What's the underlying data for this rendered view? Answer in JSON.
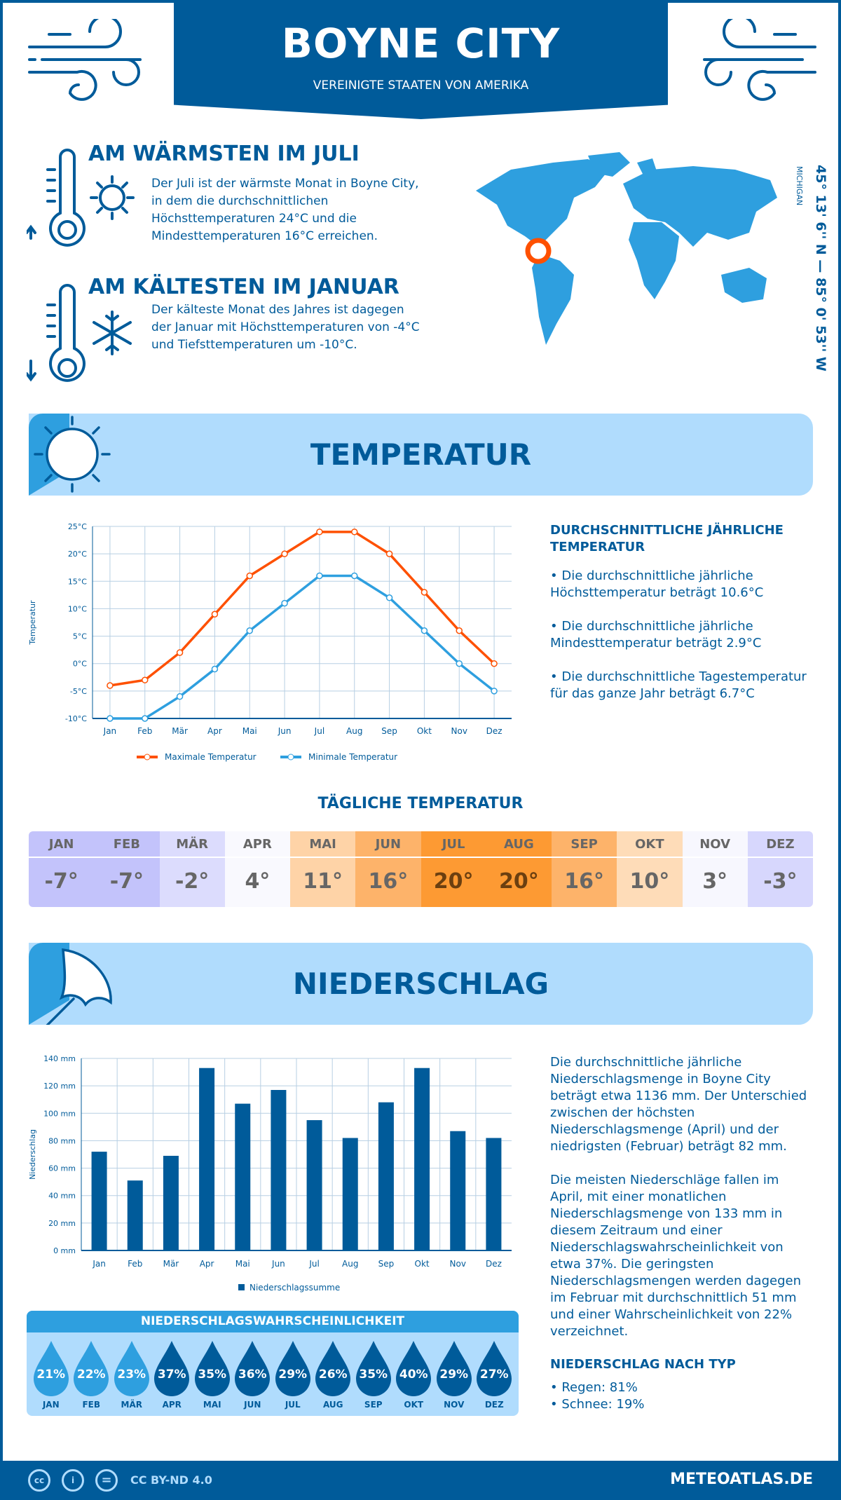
{
  "header": {
    "title": "BOYNE CITY",
    "subtitle": "VEREINIGTE STAATEN VON AMERIKA"
  },
  "warmest": {
    "heading": "AM WÄRMSTEN IM JULI",
    "lines": [
      "Der Juli ist der wärmste Monat in Boyne City,",
      "in dem die durchschnittlichen",
      "Höchsttemperaturen 24°C und die",
      "Mindesttemperaturen 16°C erreichen."
    ]
  },
  "coldest": {
    "heading": "AM KÄLTESTEN IM JANUAR",
    "lines": [
      "Der kälteste Monat des Jahres ist dagegen",
      "der Januar mit Höchsttemperaturen von -4°C",
      "und Tiefsttemperaturen um -10°C."
    ]
  },
  "location": {
    "coords": "45° 13' 6'' N — 85° 0' 53'' W",
    "region": "MICHIGAN"
  },
  "temp_section": {
    "title": "TEMPERATUR",
    "side_heading": "DURCHSCHNITTLICHE JÄHRLICHE TEMPERATUR",
    "side_lines": [
      [
        "• Die durchschnittliche jährliche",
        "Höchsttemperatur beträgt 10.6°C"
      ],
      [
        "• Die durchschnittliche jährliche",
        "Mindesttemperatur beträgt 2.9°C"
      ],
      [
        "• Die durchschnittliche Tagestemperatur",
        "für das ganze Jahr beträgt 6.7°C"
      ]
    ]
  },
  "chart_data": [
    {
      "type": "line",
      "ylabel": "Temperatur",
      "categories": [
        "Jan",
        "Feb",
        "Mär",
        "Apr",
        "Mai",
        "Jun",
        "Jul",
        "Aug",
        "Sep",
        "Okt",
        "Nov",
        "Dez"
      ],
      "ylim": [
        -10,
        25
      ],
      "yticks": [
        "-10°C",
        "-5°C",
        "0°C",
        "5°C",
        "10°C",
        "15°C",
        "20°C",
        "25°C"
      ],
      "grid": true,
      "legend": "bottom",
      "series": [
        {
          "name": "Maximale Temperatur",
          "color": "#fe5000",
          "values": [
            -4,
            -3,
            2,
            9,
            16,
            20,
            24,
            24,
            20,
            13,
            6,
            0
          ]
        },
        {
          "name": "Minimale Temperatur",
          "color": "#2e9fdf",
          "values": [
            -10,
            -10,
            -6,
            -1,
            6,
            11,
            16,
            16,
            12,
            6,
            0,
            -5
          ]
        }
      ]
    },
    {
      "type": "bar",
      "ylabel": "Niederschlag",
      "categories": [
        "Jan",
        "Feb",
        "Mär",
        "Apr",
        "Mai",
        "Jun",
        "Jul",
        "Aug",
        "Sep",
        "Okt",
        "Nov",
        "Dez"
      ],
      "ylim": [
        0,
        140
      ],
      "yticks": [
        "0 mm",
        "20 mm",
        "40 mm",
        "60 mm",
        "80 mm",
        "100 mm",
        "120 mm",
        "140 mm"
      ],
      "grid": true,
      "legend": "bottom",
      "series": [
        {
          "name": "Niederschlagssumme",
          "color": "#005b9a",
          "values": [
            72,
            51,
            69,
            133,
            107,
            117,
            95,
            82,
            108,
            133,
            87,
            82
          ]
        }
      ]
    }
  ],
  "daily": {
    "title": "TÄGLICHE TEMPERATUR",
    "months": [
      "JAN",
      "FEB",
      "MÄR",
      "APR",
      "MAI",
      "JUN",
      "JUL",
      "AUG",
      "SEP",
      "OKT",
      "NOV",
      "DEZ"
    ],
    "values": [
      "-7°",
      "-7°",
      "-2°",
      "4°",
      "11°",
      "16°",
      "20°",
      "20°",
      "16°",
      "10°",
      "3°",
      "-3°"
    ],
    "colors": [
      "#c3c3fb",
      "#c3c3fb",
      "#dcdcfd",
      "#f9f9fe",
      "#fed3a7",
      "#fdb36a",
      "#fd9a33",
      "#fd9a33",
      "#fdb36a",
      "#fedcb8",
      "#f7f7fe",
      "#d7d7fd"
    ]
  },
  "precip_section": {
    "title": "NIEDERSCHLAG",
    "text1": [
      "Die durchschnittliche jährliche",
      "Niederschlagsmenge in Boyne City",
      "beträgt etwa 1136 mm. Der Unterschied",
      "zwischen der höchsten",
      "Niederschlagsmenge (April) und der",
      "niedrigsten (Februar) beträgt 82 mm."
    ],
    "text2": [
      "Die meisten Niederschläge fallen im",
      "April, mit einer monatlichen",
      "Niederschlagsmenge von 133 mm in",
      "diesem Zeitraum und einer",
      "Niederschlagswahrscheinlichkeit von",
      "etwa 37%. Die geringsten",
      "Niederschlagsmengen werden dagegen",
      "im Februar mit durchschnittlich 51 mm",
      "und einer Wahrscheinlichkeit von 22%",
      "verzeichnet."
    ],
    "type_heading": "NIEDERSCHLAG NACH TYP",
    "types": [
      "• Regen: 81%",
      "• Schnee: 19%"
    ]
  },
  "probability": {
    "title": "NIEDERSCHLAGSWAHRSCHEINLICHKEIT",
    "months": [
      "JAN",
      "FEB",
      "MÄR",
      "APR",
      "MAI",
      "JUN",
      "JUL",
      "AUG",
      "SEP",
      "OKT",
      "NOV",
      "DEZ"
    ],
    "values": [
      "21%",
      "22%",
      "23%",
      "37%",
      "35%",
      "36%",
      "29%",
      "26%",
      "35%",
      "40%",
      "29%",
      "27%"
    ],
    "light_color": "#2e9fdf",
    "dark_color": "#005b9a"
  },
  "footer": {
    "license": "CC BY-ND 4.0",
    "site": "METEOATLAS.DE",
    "cc": "cc",
    "eq": "="
  },
  "colors": {
    "primary": "#005b9a",
    "accent": "#2e9fdf",
    "banner": "#b0dcfd",
    "max": "#fe5000"
  }
}
